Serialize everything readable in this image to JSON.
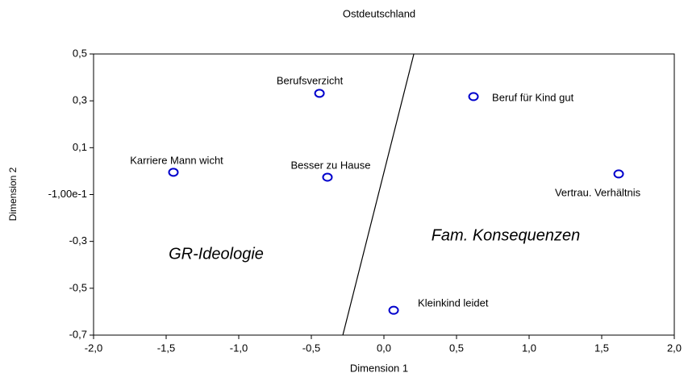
{
  "chart_data": {
    "type": "scatter",
    "title": "Ostdeutschland",
    "xlabel": "Dimension 1",
    "ylabel": "Dimension 2",
    "labels": [
      "Berufsverzicht",
      "Beruf für Kind gut",
      "Karriere Mann wicht",
      "Besser zu Hause",
      "Vertrau. Verhältnis",
      "Kleinkind leidet"
    ],
    "x": [
      -0.444,
      0.617,
      -1.45,
      -0.389,
      1.617,
      0.067
    ],
    "values": [
      0.332,
      0.318,
      -0.005,
      -0.026,
      -0.012,
      -0.594
    ],
    "color": "#0000cc",
    "boundary": {
      "x": [
        -0.283,
        0.206
      ],
      "y": [
        -0.7,
        0.5
      ]
    },
    "annotations": [
      "GR-Ideologie",
      "Fam. Konsequenzen"
    ],
    "xlim": [
      -2.0,
      2.0
    ],
    "xticks": [
      {
        "value": -2.0,
        "label": "-2,0"
      },
      {
        "value": -1.5,
        "label": "-1,5"
      },
      {
        "value": -1.0,
        "label": "-1,0"
      },
      {
        "value": -0.5,
        "label": "-0,5"
      },
      {
        "value": 0.0,
        "label": "0,0"
      },
      {
        "value": 0.5,
        "label": "0,5"
      },
      {
        "value": 1.0,
        "label": "1,0"
      },
      {
        "value": 1.5,
        "label": "1,5"
      },
      {
        "value": 2.0,
        "label": "2,0"
      }
    ],
    "ylim": [
      -0.7,
      0.5
    ],
    "yticks": [
      {
        "value": 0.5,
        "label": "0,5"
      },
      {
        "value": 0.3,
        "label": "0,3"
      },
      {
        "value": 0.1,
        "label": "0,1"
      },
      {
        "value": -0.1,
        "label": "-1,00e-1"
      },
      {
        "value": -0.3,
        "label": "-0,3"
      },
      {
        "value": -0.5,
        "label": "-0,5"
      },
      {
        "value": -0.7,
        "label": "-0,7"
      }
    ]
  }
}
